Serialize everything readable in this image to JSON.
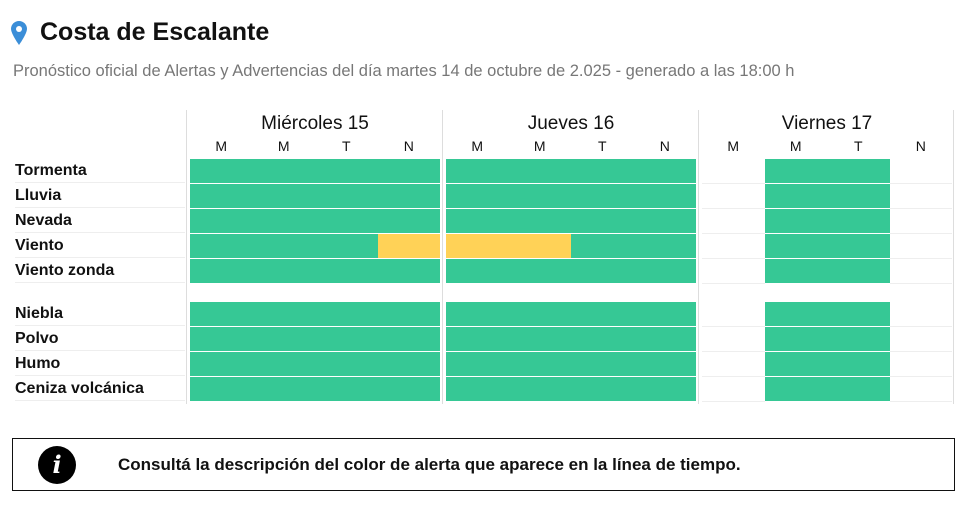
{
  "header": {
    "title": "Costa de Escalante",
    "subtitle": "Pronóstico oficial de Alertas y Advertencias del día martes 14 de octubre de 2.025 - generado a las 18:00 h",
    "icon": "map-pin-icon",
    "icon_color": "#3b8ed8"
  },
  "colors": {
    "green": "#36c895",
    "yellow": "#ffd257"
  },
  "days": [
    {
      "label": "Miércoles 15",
      "slots": [
        "M",
        "M",
        "T",
        "N"
      ]
    },
    {
      "label": "Jueves 16",
      "slots": [
        "M",
        "M",
        "T",
        "N"
      ]
    },
    {
      "label": "Viernes 17",
      "slots": [
        "M",
        "M",
        "T",
        "N"
      ]
    }
  ],
  "groups": [
    [
      {
        "label": "Tormenta",
        "levels": [
          "green",
          "green",
          "green",
          "green",
          "green",
          "green",
          "green",
          "green",
          null,
          "green",
          "green",
          null
        ]
      },
      {
        "label": "Lluvia",
        "levels": [
          "green",
          "green",
          "green",
          "green",
          "green",
          "green",
          "green",
          "green",
          null,
          "green",
          "green",
          null
        ]
      },
      {
        "label": "Nevada",
        "levels": [
          "green",
          "green",
          "green",
          "green",
          "green",
          "green",
          "green",
          "green",
          null,
          "green",
          "green",
          null
        ]
      },
      {
        "label": "Viento",
        "levels": [
          "green",
          "green",
          "green",
          "yellow",
          "yellow",
          "yellow",
          "green",
          "green",
          null,
          "green",
          "green",
          null
        ]
      },
      {
        "label": "Viento zonda",
        "levels": [
          "green",
          "green",
          "green",
          "green",
          "green",
          "green",
          "green",
          "green",
          null,
          "green",
          "green",
          null
        ]
      }
    ],
    [
      {
        "label": "Niebla",
        "levels": [
          "green",
          "green",
          "green",
          "green",
          "green",
          "green",
          "green",
          "green",
          null,
          "green",
          "green",
          null
        ]
      },
      {
        "label": "Polvo",
        "levels": [
          "green",
          "green",
          "green",
          "green",
          "green",
          "green",
          "green",
          "green",
          null,
          "green",
          "green",
          null
        ]
      },
      {
        "label": "Humo",
        "levels": [
          "green",
          "green",
          "green",
          "green",
          "green",
          "green",
          "green",
          "green",
          null,
          "green",
          "green",
          null
        ]
      },
      {
        "label": "Ceniza volcánica",
        "levels": [
          "green",
          "green",
          "green",
          "green",
          "green",
          "green",
          "green",
          "green",
          null,
          "green",
          "green",
          null
        ]
      }
    ]
  ],
  "info": {
    "icon": "info-icon",
    "text": "Consultá la descripción del color de alerta que aparece en la línea de tiempo."
  }
}
